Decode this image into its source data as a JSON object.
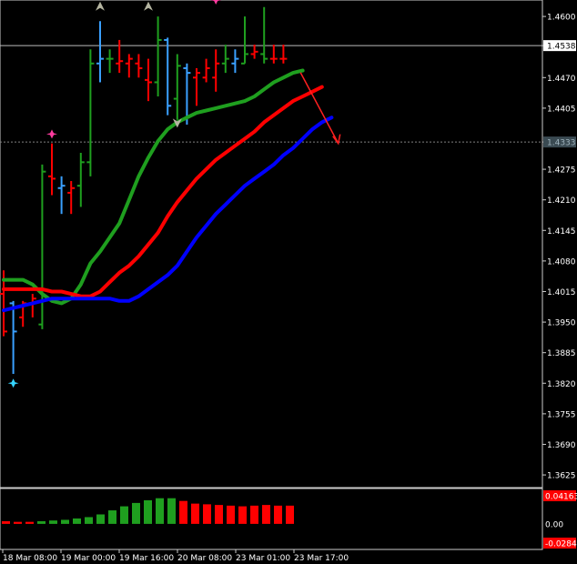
{
  "chart_data": [
    {
      "type": "candlestick",
      "price_levels": [
        "1.4600",
        "1.4538",
        "1.4470",
        "1.4405",
        "1.4333",
        "1.4275",
        "1.4210",
        "1.4145",
        "1.4080",
        "1.4015",
        "1.3950",
        "1.3885",
        "1.3820",
        "1.3755",
        "1.3690",
        "1.3625"
      ],
      "current_price": "1.4538",
      "marked_level": "1.4333",
      "x_labels": [
        "18 Mar 08:00",
        "19 Mar 00:00",
        "19 Mar 16:00",
        "20 Mar 08:00",
        "23 Mar 01:00",
        "23 Mar 17:00"
      ],
      "bars": [
        {
          "o": 1.401,
          "h": 1.406,
          "l": 1.392,
          "c": 1.393,
          "color": "#ff0000"
        },
        {
          "o": 1.399,
          "h": 1.3995,
          "l": 1.384,
          "c": 1.393,
          "color": "#3aa0ff"
        },
        {
          "o": 1.396,
          "h": 1.3995,
          "l": 1.394,
          "c": 1.399,
          "color": "#ff0000"
        },
        {
          "o": 1.399,
          "h": 1.401,
          "l": 1.396,
          "c": 1.4,
          "color": "#ff0000"
        },
        {
          "o": 1.3945,
          "h": 1.4285,
          "l": 1.3935,
          "c": 1.427,
          "color": "#1f9f1f"
        },
        {
          "o": 1.426,
          "h": 1.433,
          "l": 1.422,
          "c": 1.4255,
          "color": "#ff0000"
        },
        {
          "o": 1.4235,
          "h": 1.426,
          "l": 1.418,
          "c": 1.424,
          "color": "#3aa0ff"
        },
        {
          "o": 1.4225,
          "h": 1.425,
          "l": 1.418,
          "c": 1.4235,
          "color": "#ff0000"
        },
        {
          "o": 1.424,
          "h": 1.431,
          "l": 1.4195,
          "c": 1.429,
          "color": "#1f9f1f"
        },
        {
          "o": 1.429,
          "h": 1.453,
          "l": 1.426,
          "c": 1.45,
          "color": "#1f9f1f"
        },
        {
          "o": 1.45,
          "h": 1.459,
          "l": 1.446,
          "c": 1.451,
          "color": "#3aa0ff"
        },
        {
          "o": 1.451,
          "h": 1.453,
          "l": 1.448,
          "c": 1.451,
          "color": "#1f9f1f"
        },
        {
          "o": 1.45,
          "h": 1.455,
          "l": 1.448,
          "c": 1.4505,
          "color": "#ff0000"
        },
        {
          "o": 1.45,
          "h": 1.452,
          "l": 1.447,
          "c": 1.451,
          "color": "#ff0000"
        },
        {
          "o": 1.45,
          "h": 1.452,
          "l": 1.447,
          "c": 1.449,
          "color": "#ff0000"
        },
        {
          "o": 1.4465,
          "h": 1.451,
          "l": 1.442,
          "c": 1.446,
          "color": "#ff0000"
        },
        {
          "o": 1.446,
          "h": 1.46,
          "l": 1.443,
          "c": 1.455,
          "color": "#1f9f1f"
        },
        {
          "o": 1.455,
          "h": 1.4555,
          "l": 1.439,
          "c": 1.441,
          "color": "#3aa0ff"
        },
        {
          "o": 1.4425,
          "h": 1.452,
          "l": 1.438,
          "c": 1.4495,
          "color": "#1f9f1f"
        },
        {
          "o": 1.449,
          "h": 1.45,
          "l": 1.437,
          "c": 1.448,
          "color": "#3aa0ff"
        },
        {
          "o": 1.447,
          "h": 1.449,
          "l": 1.441,
          "c": 1.448,
          "color": "#ff0000"
        },
        {
          "o": 1.447,
          "h": 1.451,
          "l": 1.446,
          "c": 1.449,
          "color": "#ff0000"
        },
        {
          "o": 1.447,
          "h": 1.453,
          "l": 1.444,
          "c": 1.45,
          "color": "#ff0000"
        },
        {
          "o": 1.45,
          "h": 1.454,
          "l": 1.448,
          "c": 1.451,
          "color": "#1f9f1f"
        },
        {
          "o": 1.45,
          "h": 1.453,
          "l": 1.448,
          "c": 1.451,
          "color": "#3aa0ff"
        },
        {
          "o": 1.45,
          "h": 1.46,
          "l": 1.45,
          "c": 1.452,
          "color": "#1f9f1f"
        },
        {
          "o": 1.452,
          "h": 1.454,
          "l": 1.451,
          "c": 1.4525,
          "color": "#ff0000"
        },
        {
          "o": 1.452,
          "h": 1.462,
          "l": 1.45,
          "c": 1.451,
          "color": "#1f9f1f"
        },
        {
          "o": 1.451,
          "h": 1.454,
          "l": 1.45,
          "c": 1.451,
          "color": "#ff0000"
        },
        {
          "o": 1.451,
          "h": 1.454,
          "l": 1.45,
          "c": 1.451,
          "color": "#ff0000"
        }
      ],
      "series": [
        {
          "color": "#1f9f1f",
          "values": [
            1.404,
            1.404,
            1.404,
            1.403,
            1.401,
            1.3995,
            1.399,
            1.4,
            1.403,
            1.4075,
            1.41,
            1.413,
            1.416,
            1.421,
            1.426,
            1.43,
            1.4335,
            1.436,
            1.4375,
            1.4385,
            1.4395,
            1.44,
            1.4405,
            1.441,
            1.4415,
            1.442,
            1.443,
            1.4445,
            1.446,
            1.447,
            1.448,
            1.4485
          ]
        },
        {
          "color": "#ff0000",
          "values": [
            1.402,
            1.402,
            1.402,
            1.402,
            1.402,
            1.4015,
            1.4015,
            1.401,
            1.4005,
            1.4005,
            1.4015,
            1.4035,
            1.4055,
            1.407,
            1.409,
            1.4115,
            1.414,
            1.4175,
            1.4205,
            1.423,
            1.4255,
            1.4275,
            1.4295,
            1.431,
            1.4325,
            1.434,
            1.4355,
            1.4375,
            1.439,
            1.4405,
            1.442,
            1.443,
            1.444,
            1.445
          ]
        },
        {
          "color": "#0000ff",
          "values": [
            1.3975,
            1.398,
            1.3985,
            1.399,
            1.3995,
            1.4,
            1.4,
            1.4,
            1.4,
            1.4,
            1.4,
            1.4,
            1.3995,
            1.3995,
            1.4005,
            1.402,
            1.4035,
            1.405,
            1.407,
            1.41,
            1.413,
            1.4155,
            1.418,
            1.42,
            1.422,
            1.424,
            1.4255,
            1.427,
            1.4285,
            1.4305,
            1.432,
            1.434,
            1.436,
            1.4375,
            1.4385
          ]
        }
      ],
      "markers": [
        {
          "bar": 1,
          "price": 1.382,
          "color": "#35d4ff",
          "shape": "star"
        },
        {
          "bar": 5,
          "price": 1.435,
          "color": "#ff3ca0",
          "shape": "star"
        },
        {
          "bar": 10,
          "price": 1.462,
          "color": "#b4b4a0",
          "shape": "arrow-up"
        },
        {
          "bar": 15,
          "price": 1.462,
          "color": "#b4b4a0",
          "shape": "arrow-up"
        },
        {
          "bar": 22,
          "price": 1.4635,
          "color": "#ff3ca0",
          "shape": "star"
        },
        {
          "bar": 18,
          "price": 1.4375,
          "color": "#b4b4a0",
          "shape": "arrow-down"
        }
      ],
      "arrow_annotation": {
        "color": "#ff2020",
        "from": {
          "bar": 27,
          "price": 1.45
        },
        "to": {
          "bar": 29.5,
          "price": 1.433
        }
      }
    },
    {
      "type": "bar",
      "name": "oscillator",
      "tick_labels": [
        "0.04163",
        "0.00",
        "-0.02845"
      ],
      "ylim": [
        -0.02845,
        0.04163
      ],
      "values": [
        0.004,
        0.003,
        0.003,
        0.004,
        0.005,
        0.006,
        0.008,
        0.01,
        0.014,
        0.02,
        0.026,
        0.031,
        0.035,
        0.038,
        0.038,
        0.034,
        0.03,
        0.029,
        0.028,
        0.027,
        0.026,
        0.027,
        0.028,
        0.027,
        0.027
      ],
      "colors": [
        "#ff0000",
        "#ff0000",
        "#ff0000",
        "#1f9f1f",
        "#1f9f1f",
        "#1f9f1f",
        "#1f9f1f",
        "#1f9f1f",
        "#1f9f1f",
        "#1f9f1f",
        "#1f9f1f",
        "#1f9f1f",
        "#1f9f1f",
        "#1f9f1f",
        "#1f9f1f",
        "#ff0000",
        "#ff0000",
        "#ff0000",
        "#ff0000",
        "#ff0000",
        "#ff0000",
        "#ff0000",
        "#ff0000",
        "#ff0000",
        "#ff0000"
      ],
      "zero_line_color": "#ffffff",
      "top_label_color": "#ff0000",
      "bottom_label_color": "#ff0000"
    }
  ]
}
